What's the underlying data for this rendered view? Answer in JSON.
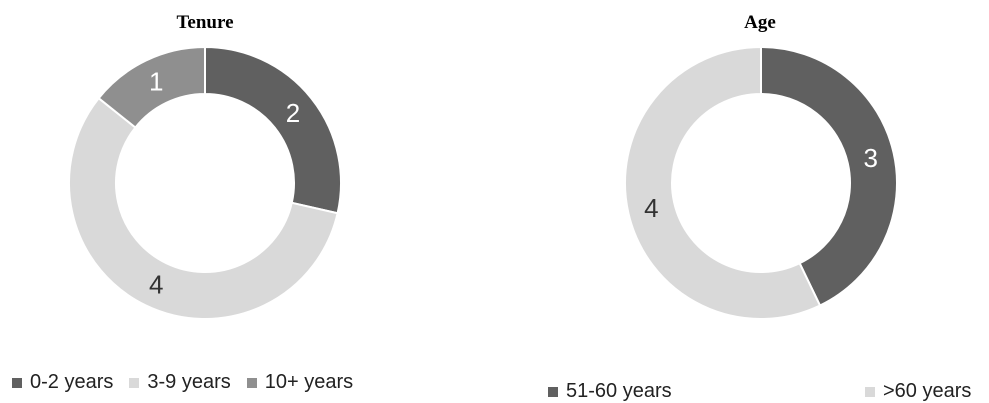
{
  "chart_data": [
    {
      "type": "pie",
      "subtype": "donut",
      "title": "Tenure",
      "categories": [
        "0-2 years",
        "3-9 years",
        "10+ years"
      ],
      "values": [
        2,
        4,
        1
      ],
      "colors": [
        "#606060",
        "#d9d9d9",
        "#8f8f8f"
      ],
      "label_colors": [
        "#ffffff",
        "#333333",
        "#ffffff"
      ],
      "legend": "bottom"
    },
    {
      "type": "pie",
      "subtype": "donut",
      "title": "Age",
      "categories": [
        "51-60 years",
        ">60 years"
      ],
      "values": [
        3,
        4
      ],
      "colors": [
        "#606060",
        "#d9d9d9"
      ],
      "label_colors": [
        "#ffffff",
        "#333333"
      ],
      "legend": "bottom"
    }
  ]
}
